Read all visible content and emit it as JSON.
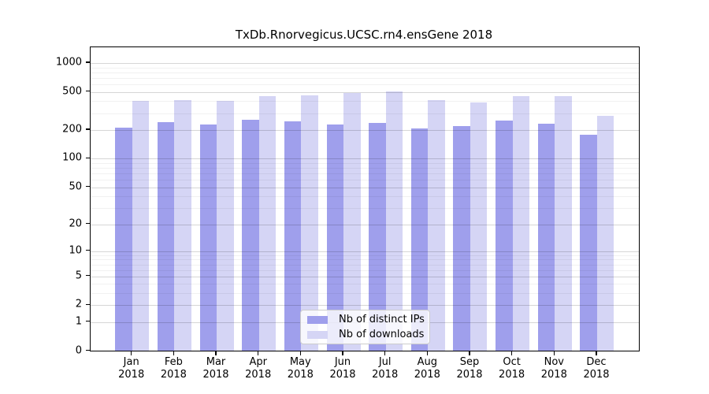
{
  "chart_data": {
    "type": "bar",
    "title": "TxDb.Rnorvegicus.UCSC.rn4.ensGene 2018",
    "year": "2018",
    "months": [
      "Jan",
      "Feb",
      "Mar",
      "Apr",
      "May",
      "Jun",
      "Jul",
      "Aug",
      "Sep",
      "Oct",
      "Nov",
      "Dec"
    ],
    "series": [
      {
        "name": "Nb of distinct IPs",
        "color": "#9f9fec",
        "values": [
          209,
          240,
          225,
          256,
          245,
          226,
          233,
          206,
          219,
          248,
          230,
          176
        ]
      },
      {
        "name": "Nb of downloads",
        "color": "#d5d5f5",
        "values": [
          399,
          411,
          401,
          450,
          459,
          485,
          500,
          406,
          384,
          447,
          452,
          280
        ]
      }
    ],
    "y_ticks": [
      0,
      1,
      2,
      5,
      10,
      20,
      50,
      100,
      200,
      500,
      1000
    ],
    "y_minor_gridlines": [
      3,
      4,
      6,
      7,
      8,
      9,
      30,
      40,
      60,
      70,
      80,
      90,
      300,
      400,
      600,
      700,
      800,
      900
    ],
    "scale": "log10(1+v)",
    "ylim": [
      0,
      1460
    ],
    "xlabel": "",
    "ylabel": "",
    "grid": true,
    "legend_position": "lower center",
    "axis_color": "#000000",
    "background_color": "#ffffff"
  }
}
